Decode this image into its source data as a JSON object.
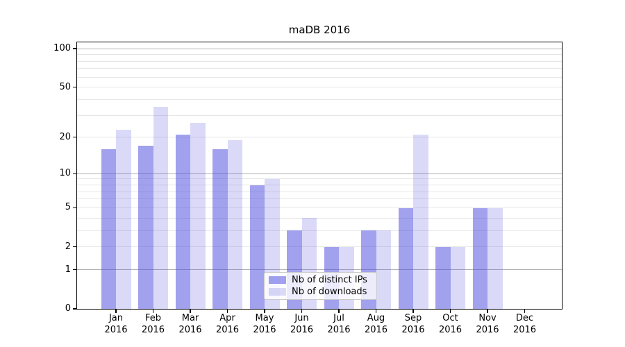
{
  "title": "maDB 2016",
  "legend": {
    "items": [
      {
        "label": "Nb of distinct IPs"
      },
      {
        "label": "Nb of downloads"
      }
    ]
  },
  "chart_data": {
    "type": "bar",
    "title": "maDB 2016",
    "categories": [
      "Jan",
      "Feb",
      "Mar",
      "Apr",
      "May",
      "Jun",
      "Jul",
      "Aug",
      "Sep",
      "Oct",
      "Nov",
      "Dec"
    ],
    "category_year": "2016",
    "series": [
      {
        "name": "Nb of distinct IPs",
        "color": "rgba(68,68,221,0.5)",
        "values": [
          16,
          17,
          21,
          16,
          8,
          3,
          2,
          3,
          5,
          2,
          5,
          0
        ]
      },
      {
        "name": "Nb of downloads",
        "color": "rgba(68,68,221,0.2)",
        "values": [
          23,
          35,
          26,
          19,
          9,
          4,
          2,
          3,
          21,
          2,
          5,
          0
        ]
      }
    ],
    "xlabel": "",
    "ylabel": "",
    "yscale": "log1p",
    "ylim": [
      0,
      112
    ],
    "yticks": [
      0,
      1,
      2,
      5,
      10,
      20,
      50,
      100
    ],
    "grid": {
      "major": [
        1,
        10,
        100
      ],
      "minor": [
        2,
        3,
        4,
        5,
        6,
        7,
        8,
        9,
        20,
        30,
        40,
        50,
        60,
        70,
        80,
        90
      ]
    },
    "grid_on": true,
    "legend_position": "lower center",
    "colors": {
      "bar_distinct_ips": "rgba(68,68,221,0.5)",
      "bar_downloads": "rgba(68,68,221,0.2)",
      "grid_major": "#b0b0b0",
      "grid_minor": "#e6e6e6",
      "axis": "#000000",
      "background": "#ffffff"
    }
  }
}
